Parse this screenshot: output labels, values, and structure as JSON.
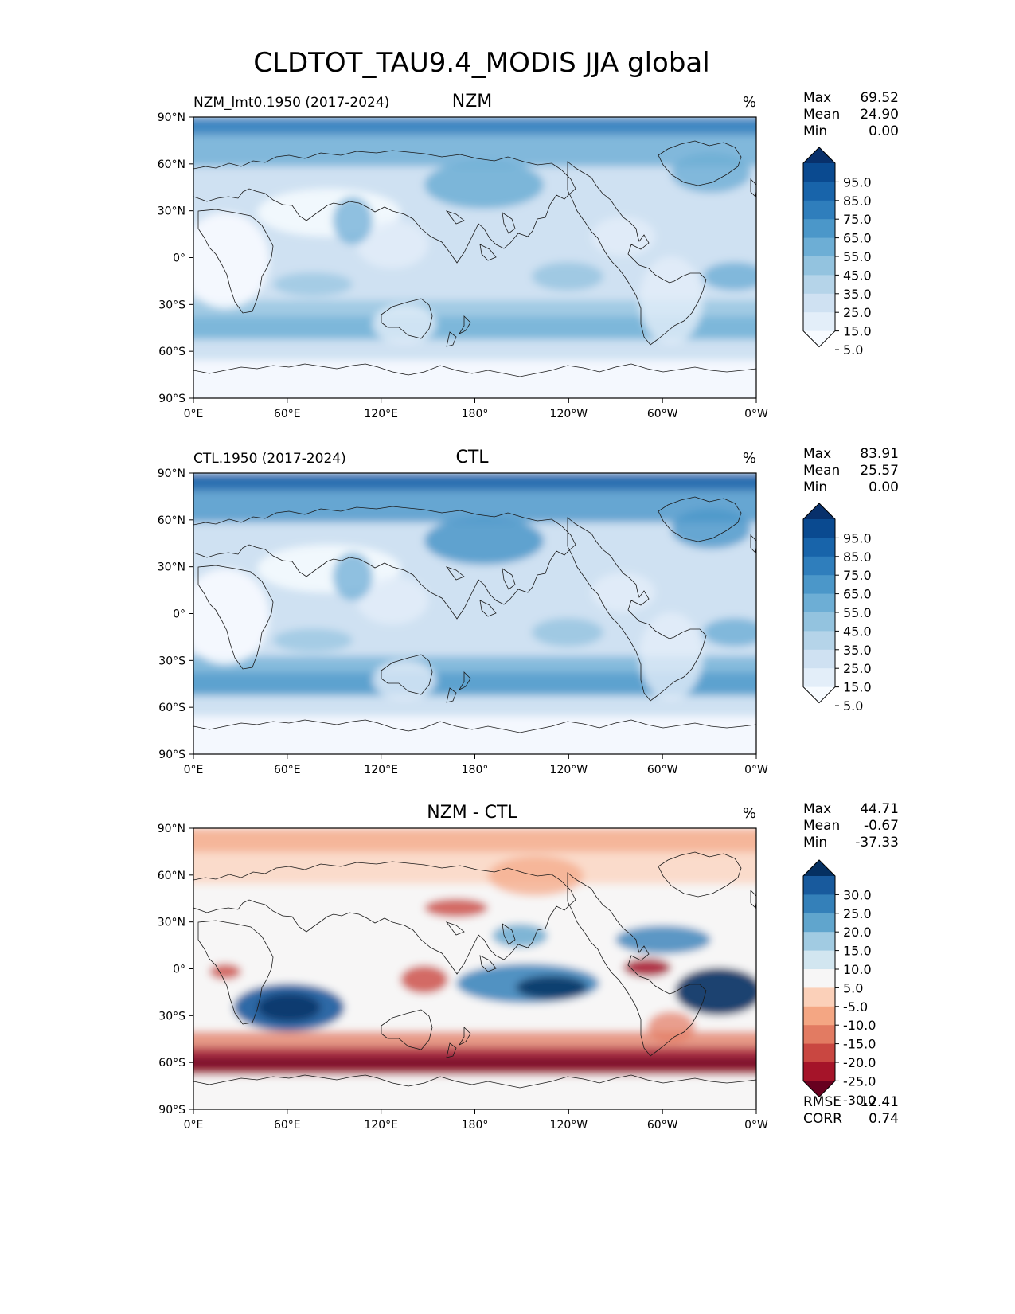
{
  "chart_data": {
    "type": "heatmap",
    "title": "CLDTOT_TAU9.4_MODIS JJA global",
    "x_ticks": [
      "0°E",
      "60°E",
      "120°E",
      "180°",
      "120°W",
      "60°W",
      "0°W"
    ],
    "y_ticks": [
      "90°N",
      "60°N",
      "30°N",
      "0°",
      "30°S",
      "60°S",
      "90°S"
    ],
    "panels": [
      {
        "name": "NZM",
        "title": "NZM",
        "subtitle": "NZM_lmt0.1950 (2017-2024)",
        "units": "%",
        "stats": [
          {
            "label": "Max",
            "value": "69.52"
          },
          {
            "label": "Mean",
            "value": "24.90"
          },
          {
            "label": "Min",
            "value": "0.00"
          }
        ],
        "colorbar_levels": [
          "95.0",
          "85.0",
          "75.0",
          "65.0",
          "55.0",
          "45.0",
          "35.0",
          "25.0",
          "15.0",
          "5.0"
        ],
        "cmap": "blues"
      },
      {
        "name": "CTL",
        "title": "CTL",
        "subtitle": "CTL.1950 (2017-2024)",
        "units": "%",
        "stats": [
          {
            "label": "Max",
            "value": "83.91"
          },
          {
            "label": "Mean",
            "value": "25.57"
          },
          {
            "label": "Min",
            "value": "0.00"
          }
        ],
        "colorbar_levels": [
          "95.0",
          "85.0",
          "75.0",
          "65.0",
          "55.0",
          "45.0",
          "35.0",
          "25.0",
          "15.0",
          "5.0"
        ],
        "cmap": "blues"
      },
      {
        "name": "DIFF",
        "title": "NZM - CTL",
        "subtitle": "",
        "units": "%",
        "stats": [
          {
            "label": "Max",
            "value": "44.71"
          },
          {
            "label": "Mean",
            "value": "-0.67"
          },
          {
            "label": "Min",
            "value": "-37.33"
          }
        ],
        "colorbar_levels": [
          "30.0",
          "25.0",
          "20.0",
          "15.0",
          "10.0",
          "5.0",
          "-5.0",
          "-10.0",
          "-15.0",
          "-20.0",
          "-25.0",
          "-30.0"
        ],
        "cmap": "rdbu",
        "metrics": [
          {
            "label": "RMSE",
            "value": "12.41"
          },
          {
            "label": "CORR",
            "value": "0.74"
          }
        ]
      }
    ]
  },
  "colors": {
    "blues": [
      "#f7fbff",
      "#e3eef9",
      "#cfe1f2",
      "#b5d4e9",
      "#93c3df",
      "#6daed5",
      "#4b97c9",
      "#2f7ebc",
      "#1864aa",
      "#0a4a90",
      "#08306b"
    ],
    "rdbu": [
      "#67001f",
      "#a51429",
      "#c94741",
      "#e27b62",
      "#f4a683",
      "#fbd0b9",
      "#f7f6f6",
      "#d2e6f0",
      "#a1cbe2",
      "#60a5cd",
      "#3480b9",
      "#185a9d",
      "#053061"
    ]
  }
}
